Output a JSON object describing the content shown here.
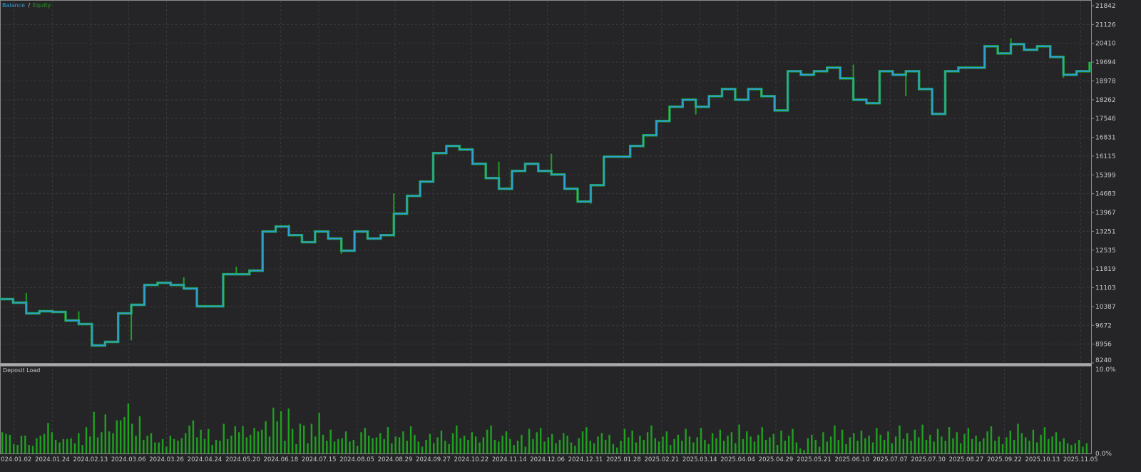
{
  "chart_data": [
    {
      "type": "line",
      "legend": {
        "balance_label": "Balance",
        "separator": " / ",
        "equity_label": "Equity",
        "placement": "top-left"
      },
      "colors": {
        "balance": "#2f9fd8",
        "equity": "#1fa01f",
        "background": "#252528",
        "grid": "#3a3a3e"
      },
      "grid": true,
      "ylim": [
        8240,
        21842
      ],
      "yticks": [
        "21842",
        "21126",
        "20410",
        "19694",
        "18978",
        "18262",
        "17546",
        "16831",
        "16115",
        "15399",
        "14683",
        "13967",
        "13251",
        "12535",
        "11819",
        "11103",
        "10387",
        "9672",
        "8956",
        "8240"
      ],
      "xticks": [
        "2024.01.02",
        "2024.01.24",
        "2024.02.13",
        "2024.03.06",
        "2024.03.26",
        "2024.04.24",
        "2024.05.20",
        "2024.06.18",
        "2024.07.15",
        "2024.08.05",
        "2024.08.29",
        "2024.09.27",
        "2024.10.22",
        "2024.11.14",
        "2024.12.06",
        "2024.12.31",
        "2025.01.28",
        "2025.02.21",
        "2025.03.14",
        "2025.04.04",
        "2025.04.29",
        "2025.05.21",
        "2025.06.10",
        "2025.07.07",
        "2025.07.30",
        "2025.08.27",
        "2025.09.22",
        "2025.10.13",
        "2025.11.05"
      ],
      "balance": [
        10669,
        10533,
        10126,
        10208,
        10180,
        9855,
        9719,
        8906,
        9041,
        10126,
        10452,
        11211,
        11292,
        11211,
        11075,
        10397,
        10397,
        11618,
        11618,
        11753,
        13245,
        13435,
        13109,
        12838,
        13245,
        12974,
        12513,
        13245,
        12974,
        13109,
        13923,
        14601,
        15143,
        16228,
        16499,
        16364,
        15821,
        15279,
        14872,
        15550,
        15821,
        15550,
        15415,
        14872,
        14384,
        15008,
        16093,
        16093,
        16499,
        16906,
        17449,
        17991,
        18262,
        17991,
        18398,
        18669,
        18262,
        18669,
        18398,
        17855,
        19347,
        19211,
        19347,
        19483,
        19076,
        18262,
        18127,
        19347,
        19211,
        19347,
        18669,
        17720,
        19347,
        19483,
        19483,
        20296,
        20025,
        20378,
        20161,
        20296,
        19889,
        19211,
        19347,
        19700
      ],
      "equity_spikes": [
        10900,
        10200,
        9100,
        11500,
        11900,
        13500,
        12400,
        14700,
        16500,
        15900,
        16200,
        14300,
        16500,
        17700,
        18700,
        19400,
        19600,
        18400,
        19300,
        20600,
        19100
      ]
    },
    {
      "type": "bar",
      "title": "Deposit Load",
      "ylim": [
        0,
        10
      ],
      "yticks": [
        "10.0%",
        "0.0%"
      ],
      "unit": "%",
      "color": "#1fa01f",
      "values": [
        2.5,
        2.3,
        2.2,
        1.1,
        1.0,
        2.1,
        2.1,
        1.0,
        0.9,
        1.8,
        2.1,
        2.3,
        3.6,
        2.5,
        1.6,
        1.3,
        1.7,
        1.7,
        1.8,
        1.2,
        2.4,
        1.0,
        3.1,
        2.0,
        4.9,
        1.9,
        2.5,
        4.6,
        2.6,
        2.4,
        3.9,
        3.9,
        4.3,
        5.9,
        3.5,
        2.1,
        4.4,
        1.6,
        2.1,
        2.4,
        1.3,
        1.3,
        1.7,
        0.8,
        2.1,
        1.7,
        1.5,
        1.8,
        2.4,
        3.3,
        3.9,
        1.9,
        2.8,
        1.7,
        2.9,
        1.0,
        1.6,
        1.5,
        3.5,
        1.7,
        2.1,
        3.2,
        2.5,
        3.2,
        1.9,
        2.2,
        3.0,
        2.6,
        2.8,
        3.8,
        2.0,
        5.4,
        3.8,
        5.0,
        1.5,
        5.3,
        2.9,
        1.1,
        3.5,
        3.3,
        1.2,
        3.5,
        2.0,
        4.8,
        2.2,
        1.5,
        2.8,
        1.4,
        1.7,
        1.8,
        2.6,
        1.4,
        1.6,
        0.9,
        2.5,
        3.0,
        2.1,
        1.8,
        1.9,
        2.4,
        1.7,
        3.1,
        1.2,
        2.0,
        1.9,
        2.6,
        1.5,
        3.2,
        2.2,
        1.4,
        0.8,
        1.6,
        2.3,
        1.2,
        1.9,
        2.7,
        1.5,
        1.1,
        2.4,
        3.3,
        1.8,
        2.1,
        1.6,
        2.5,
        2.0,
        1.3,
        1.9,
        2.8,
        3.3,
        1.6,
        1.4,
        2.1,
        2.6,
        1.7,
        1.0,
        1.5,
        2.2,
        0.8,
        2.9,
        1.7,
        2.5,
        3.0,
        1.4,
        1.9,
        2.3,
        1.2,
        1.6,
        2.4,
        2.1,
        1.3,
        0.9,
        1.8,
        2.6,
        3.1,
        1.5,
        1.2,
        2.0,
        2.4,
        1.6,
        2.2,
        1.1,
        0.7,
        1.5,
        2.9,
        1.9,
        2.7,
        1.3,
        2.1,
        1.6,
        2.5,
        3.3,
        1.8,
        1.4,
        2.0,
        2.6,
        1.0,
        1.7,
        2.2,
        1.5,
        2.9,
        2.0,
        1.3,
        1.9,
        3.0,
        1.6,
        1.1,
        2.4,
        1.8,
        2.8,
        1.5,
        2.1,
        2.5,
        1.2,
        3.4,
        1.7,
        2.6,
        2.0,
        1.4,
        2.2,
        3.1,
        1.6,
        1.9,
        2.3,
        1.0,
        2.7,
        1.5,
        2.1,
        2.9,
        1.3,
        0.6,
        0.4,
        1.8,
        2.2,
        1.6,
        0.8,
        2.5,
        1.4,
        2.0,
        3.3,
        1.6,
        2.8,
        1.1,
        1.9,
        2.4,
        1.5,
        2.7,
        1.8,
        2.1,
        1.3,
        3.0,
        2.2,
        1.6,
        2.6,
        1.2,
        2.0,
        3.3,
        1.7,
        2.4,
        1.5,
        2.8,
        1.9,
        3.4,
        1.6,
        2.2,
        1.4,
        2.9,
        2.0,
        1.5,
        3.1,
        1.8,
        2.5,
        1.2,
        2.3,
        3.0,
        1.7,
        2.1,
        1.4,
        1.8,
        2.6,
        3.2,
        1.5,
        2.0,
        1.1,
        1.9,
        2.7,
        1.6,
        3.5,
        2.4,
        1.9,
        1.5,
        2.8,
        1.3,
        2.2,
        3.1,
        1.7,
        2.0,
        2.5,
        1.4,
        1.8,
        1.2,
        1.0,
        1.2,
        1.6,
        0.8,
        1.2
      ]
    }
  ]
}
